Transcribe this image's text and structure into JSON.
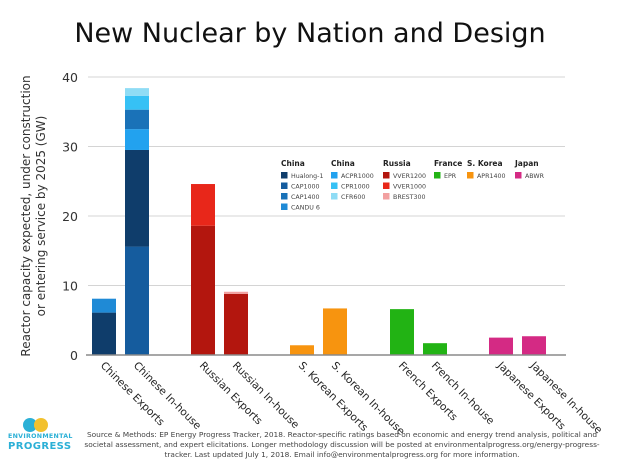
{
  "chart_data": {
    "type": "bar",
    "stacked": true,
    "title": "New Nuclear by Nation and Design",
    "xlabel": "",
    "ylabel": "Reactor capacity expected, under construction or entering service by 2025 (GW)",
    "ylabel_lines": [
      "Reactor capacity expected, under construction",
      "or entering service by 2025 (GW)"
    ],
    "ylim": [
      0,
      40
    ],
    "yticks": [
      0,
      10,
      20,
      30,
      40
    ],
    "grid": true,
    "legend_position": "center-right",
    "categories": [
      "Chinese Exports",
      "Chinese In-house",
      "Russian Exports",
      "Russian In-house",
      "S. Korean Exports",
      "S. Korean In-house",
      "French Exports",
      "French In-house",
      "Japanese Exports",
      "Japanese In-house"
    ],
    "series": [
      {
        "name": "Hualong-1",
        "group": "China",
        "color": "#0f3d6b",
        "values": [
          6.1,
          13.9,
          0,
          0,
          0,
          0,
          0,
          0,
          0,
          0
        ]
      },
      {
        "name": "CAP1000",
        "group": "China",
        "color": "#155c9e",
        "values": [
          0,
          15.6,
          0,
          0,
          0,
          0,
          0,
          0,
          0,
          0
        ]
      },
      {
        "name": "CAP1400",
        "group": "China",
        "color": "#1a72b8",
        "values": [
          0,
          2.8,
          0,
          0,
          0,
          0,
          0,
          0,
          0,
          0
        ]
      },
      {
        "name": "CANDU 6",
        "group": "China",
        "color": "#1f8ad6",
        "values": [
          2.0,
          0,
          0,
          0,
          0,
          0,
          0,
          0,
          0,
          0
        ]
      },
      {
        "name": "ACPR1000",
        "group": "China",
        "color": "#22a2ef",
        "values": [
          0,
          3.0,
          0,
          0,
          0,
          0,
          0,
          0,
          0,
          0
        ]
      },
      {
        "name": "CPR1000",
        "group": "China",
        "color": "#36c1f5",
        "values": [
          0,
          2.0,
          0,
          0,
          0,
          0,
          0,
          0,
          0,
          0
        ]
      },
      {
        "name": "CFR600",
        "group": "China",
        "color": "#8fdcf5",
        "values": [
          0,
          1.1,
          0,
          0,
          0,
          0,
          0,
          0,
          0,
          0
        ]
      },
      {
        "name": "VVER1200",
        "group": "Russia",
        "color": "#b3160e",
        "values": [
          0,
          0,
          18.6,
          8.8,
          0,
          0,
          0,
          0,
          0,
          0
        ]
      },
      {
        "name": "VVER1000",
        "group": "Russia",
        "color": "#e8271a",
        "values": [
          0,
          0,
          6.0,
          0,
          0,
          0,
          0,
          0,
          0,
          0
        ]
      },
      {
        "name": "BREST300",
        "group": "Russia",
        "color": "#f2a0a0",
        "values": [
          0,
          0,
          0,
          0.3,
          0,
          0,
          0,
          0,
          0,
          0
        ]
      },
      {
        "name": "EPR",
        "group": "France",
        "color": "#22b314",
        "values": [
          0,
          0,
          0,
          0,
          0,
          0,
          6.6,
          1.7,
          0,
          0
        ]
      },
      {
        "name": "APR1400",
        "group": "S. Korea",
        "color": "#f7940f",
        "values": [
          0,
          0,
          0,
          0,
          1.4,
          6.7,
          0,
          0,
          0,
          0
        ]
      },
      {
        "name": "ABWR",
        "group": "Japan",
        "color": "#d42a84",
        "values": [
          0,
          0,
          0,
          0,
          0,
          0,
          0,
          0,
          2.5,
          2.7
        ]
      }
    ],
    "stack_order": [
      [
        "Hualong-1",
        "CANDU 6"
      ],
      [
        "CAP1000",
        "Hualong-1",
        "ACPR1000",
        "CAP1400",
        "CPR1000",
        "CFR600"
      ],
      [
        "VVER1200",
        "VVER1000"
      ],
      [
        "VVER1200",
        "BREST300"
      ],
      [
        "APR1400"
      ],
      [
        "APR1400"
      ],
      [
        "EPR"
      ],
      [
        "EPR"
      ],
      [
        "ABWR"
      ],
      [
        "ABWR"
      ]
    ],
    "legend": [
      {
        "heading": "China",
        "items": [
          "Hualong-1",
          "CAP1000",
          "CAP1400",
          "CANDU 6"
        ]
      },
      {
        "heading": "China",
        "items": [
          "ACPR1000",
          "CPR1000",
          "CFR600"
        ]
      },
      {
        "heading": "Russia",
        "items": [
          "VVER1200",
          "VVER1000",
          "BREST300"
        ]
      },
      {
        "heading": "France",
        "items": [
          "EPR"
        ]
      },
      {
        "heading": "S. Korea",
        "items": [
          "APR1400"
        ]
      },
      {
        "heading": "Japan",
        "items": [
          "ABWR"
        ]
      }
    ]
  },
  "footer": {
    "text": "Source & Methods: EP Energy Progress Tracker, 2018. Reactor-specific ratings based on economic and energy trend analysis, political and societal assessment, and expert elicitations. Longer methodology discussion will be posted at environmentalprogress.org/energy-progress-tracker. Last updated July 1, 2018. Email info@environmentalprogress.org for more information."
  },
  "logo": {
    "mark": "ep",
    "line1": "ENVIRONMENTAL",
    "line2": "PROGRESS"
  }
}
